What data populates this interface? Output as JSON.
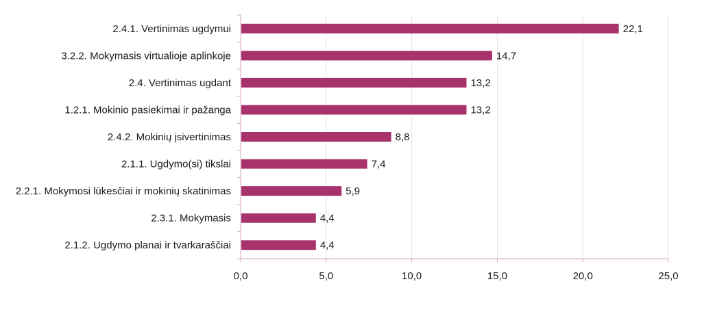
{
  "chart_data": {
    "type": "bar",
    "orientation": "horizontal",
    "title": "",
    "xlabel": "",
    "ylabel": "",
    "categories": [
      "2.4.1. Vertinimas ugdymui",
      "3.2.2. Mokymasis virtualioje aplinkoje",
      "2.4. Vertinimas ugdant",
      "1.2.1. Mokinio pasiekimai ir pažanga",
      "2.4.2. Mokinių įsivertinimas",
      "2.1.1. Ugdymo(si) tikslai",
      "2.2.1. Mokymosi lūkesčiai ir mokinių skatinimas",
      "2.3.1. Mokymasis",
      "2.1.2. Ugdymo planai ir tvarkaraščiai"
    ],
    "values": [
      22.1,
      14.7,
      13.2,
      13.2,
      8.8,
      7.4,
      5.9,
      4.4,
      4.4
    ],
    "value_labels": [
      "22,1",
      "14,7",
      "13,2",
      "13,2",
      "8,8",
      "7,4",
      "5,9",
      "4,4",
      "4,4"
    ],
    "xlim": [
      0,
      25
    ],
    "x_ticks": [
      0,
      5,
      10,
      15,
      20,
      25
    ],
    "x_tick_labels": [
      "0,0",
      "5,0",
      "10,0",
      "15,0",
      "20,0",
      "25,0"
    ],
    "grid": "vertical",
    "legend": "none",
    "colors": {
      "bar": "#a8336c",
      "grid": "#e3e3e3",
      "axis": "#d4a6bb"
    }
  }
}
